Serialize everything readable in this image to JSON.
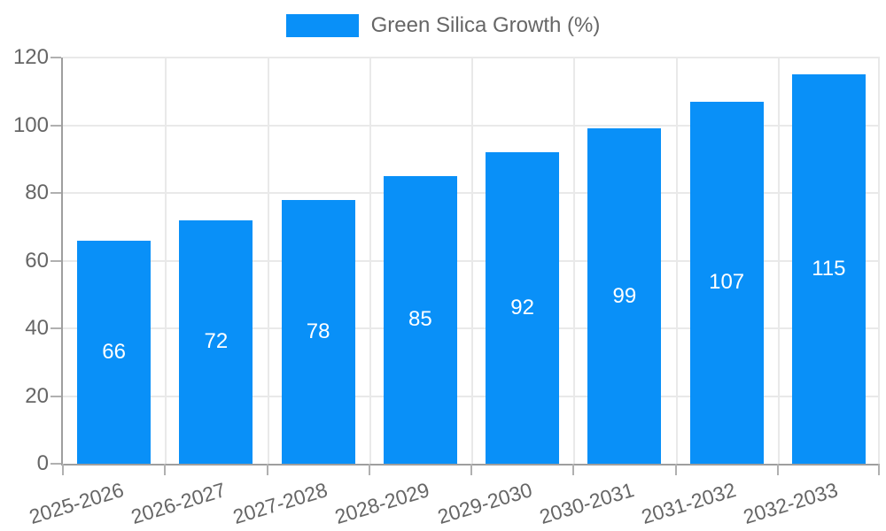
{
  "legend": {
    "label": "Green Silica Growth (%)"
  },
  "chart_data": {
    "type": "bar",
    "title": "",
    "xlabel": "",
    "ylabel": "",
    "categories": [
      "2025-2026",
      "2026-2027",
      "2027-2028",
      "2028-2029",
      "2029-2030",
      "2030-2031",
      "2031-2032",
      "2032-2033"
    ],
    "values": [
      66,
      72,
      78,
      85,
      92,
      99,
      107,
      115
    ],
    "series": [
      {
        "name": "Green Silica Growth (%)",
        "values": [
          66,
          72,
          78,
          85,
          92,
          99,
          107,
          115
        ]
      }
    ],
    "ylim": [
      0,
      120
    ],
    "yticks": [
      0,
      20,
      40,
      60,
      80,
      100,
      120
    ],
    "grid": true,
    "legend_position": "top",
    "value_labels": "inside-center",
    "colors": {
      "bar": "#0990f8",
      "value_label": "#ffffff",
      "axis_line": "#9e9e9e",
      "gridline": "#e9e9e9",
      "tick_mark": "#b0b0b0",
      "text": "#666666",
      "background": "#ffffff"
    }
  }
}
